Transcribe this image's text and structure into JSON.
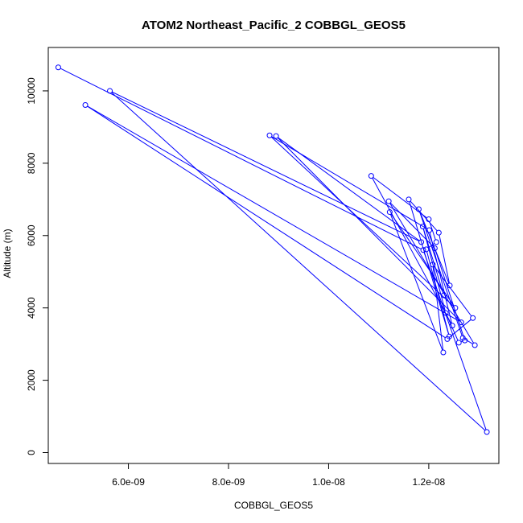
{
  "chart_data": {
    "type": "line",
    "title": "ATOM2 Northeast_Pacific_2 COBBGL_GEOS5",
    "xlabel": "COBBGL_GEOS5",
    "ylabel": "Altitude (m)",
    "xlim": [
      4.4e-09,
      1.34e-08
    ],
    "ylim": [
      -300,
      11200
    ],
    "x_ticks": [
      6e-09,
      8e-09,
      1e-08,
      1.2e-08
    ],
    "x_tick_labels": [
      "6.0e-09",
      "8.0e-09",
      "1.0e-08",
      "1.2e-08"
    ],
    "y_ticks": [
      0,
      2000,
      4000,
      6000,
      8000,
      10000
    ],
    "y_tick_labels": [
      "0",
      "2000",
      "4000",
      "6000",
      "8000",
      "10000"
    ],
    "grid": false,
    "series": [
      {
        "color": "#0000ff",
        "marker": "open-circle",
        "points": [
          {
            "x": 4.6e-09,
            "y": 10650
          },
          {
            "x": 1.189e-08,
            "y": 5600
          },
          {
            "x": 1.316e-08,
            "y": 570
          },
          {
            "x": 5.63e-09,
            "y": 10000
          },
          {
            "x": 1.185e-08,
            "y": 5820
          },
          {
            "x": 8.95e-09,
            "y": 8750
          },
          {
            "x": 1.265e-08,
            "y": 3600
          },
          {
            "x": 5.14e-09,
            "y": 9610
          },
          {
            "x": 1.237e-08,
            "y": 3140
          },
          {
            "x": 1.288e-08,
            "y": 3720
          },
          {
            "x": 1.208e-08,
            "y": 5200
          },
          {
            "x": 1.229e-08,
            "y": 2770
          },
          {
            "x": 1.122e-08,
            "y": 6650
          },
          {
            "x": 1.253e-08,
            "y": 4000
          },
          {
            "x": 8.82e-09,
            "y": 8770
          },
          {
            "x": 1.201e-08,
            "y": 6150
          },
          {
            "x": 1.247e-08,
            "y": 3510
          },
          {
            "x": 1.085e-08,
            "y": 7650
          },
          {
            "x": 1.2e-08,
            "y": 6450
          },
          {
            "x": 1.215e-08,
            "y": 5820
          },
          {
            "x": 1.195e-08,
            "y": 5620
          },
          {
            "x": 1.241e-08,
            "y": 3210
          },
          {
            "x": 1.16e-08,
            "y": 7000
          },
          {
            "x": 1.22e-08,
            "y": 6080
          },
          {
            "x": 1.242e-08,
            "y": 4620
          },
          {
            "x": 1.18e-08,
            "y": 6730
          },
          {
            "x": 1.268e-08,
            "y": 3170
          },
          {
            "x": 1.292e-08,
            "y": 2970
          },
          {
            "x": 1.12e-08,
            "y": 6950
          },
          {
            "x": 1.212e-08,
            "y": 5650
          },
          {
            "x": 1.272e-08,
            "y": 3100
          },
          {
            "x": 1.26e-08,
            "y": 3040
          },
          {
            "x": 1.234e-08,
            "y": 3860
          },
          {
            "x": 1.188e-08,
            "y": 6250
          },
          {
            "x": 1.23e-08,
            "y": 4350
          }
        ]
      }
    ]
  }
}
